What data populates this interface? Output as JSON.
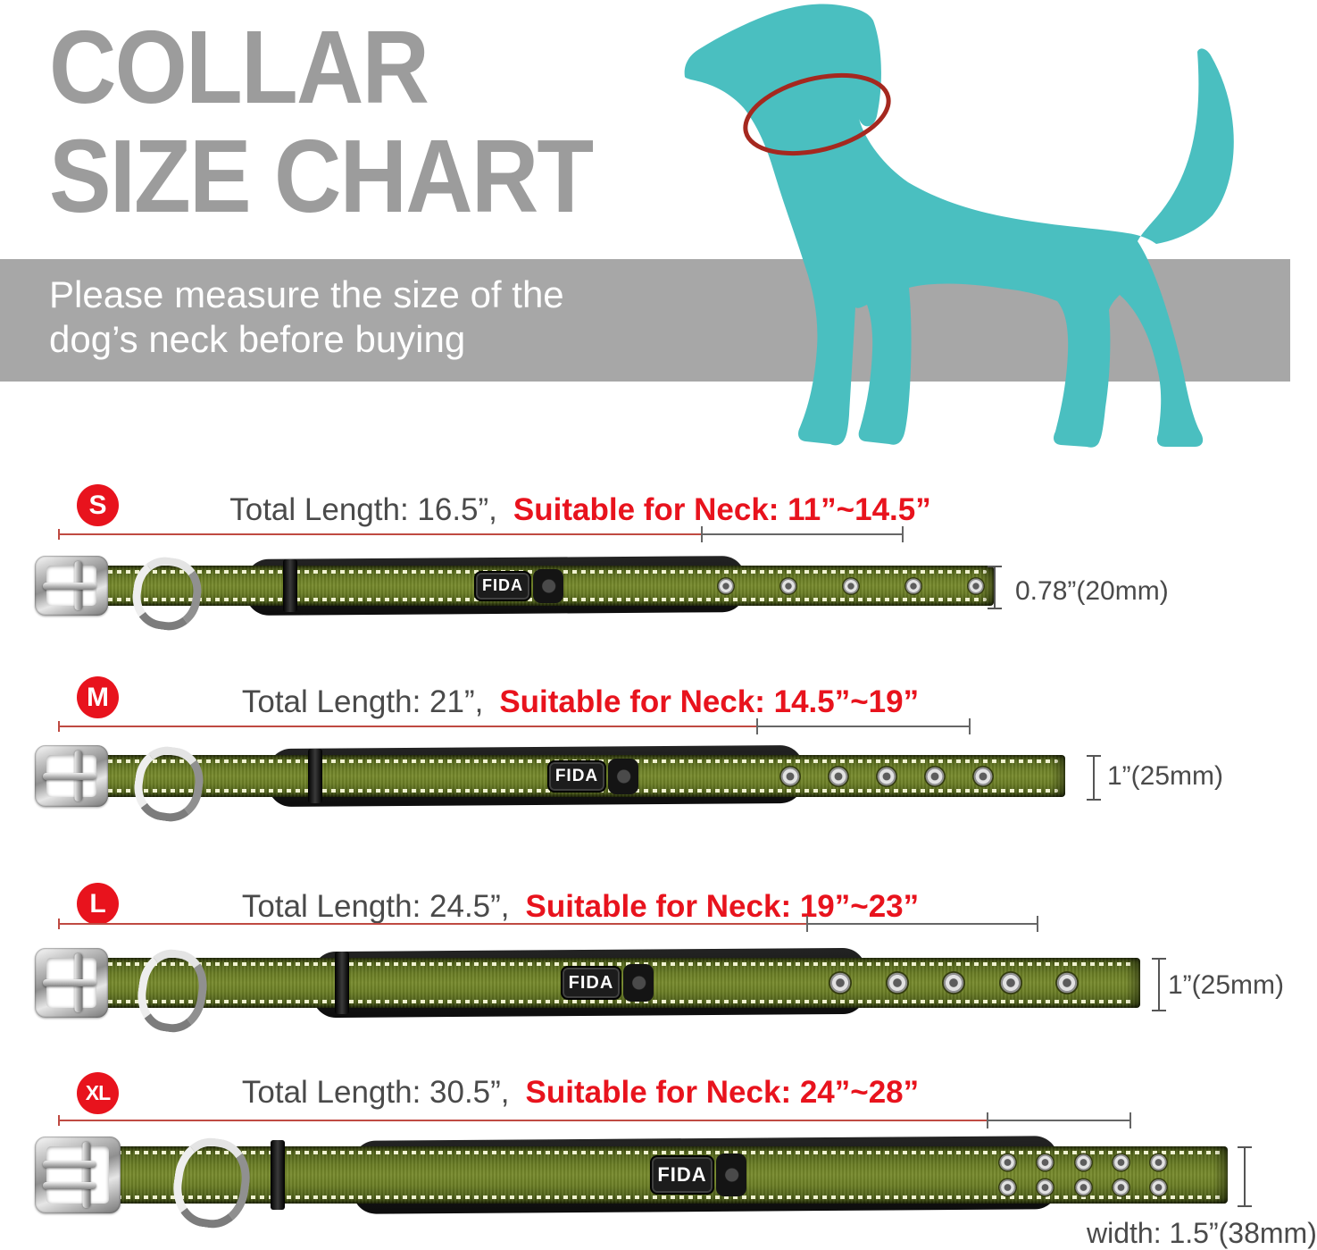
{
  "title": {
    "line1": "COLLAR",
    "line2": "SIZE CHART"
  },
  "banner": {
    "line1": "Please measure the size of the",
    "line2": "dog’s neck before buying"
  },
  "dog": {
    "description": "teal dog silhouette with red measuring ring around neck"
  },
  "brand": "FIDA",
  "rows": [
    {
      "size": "S",
      "total_length": "Total Length: 16.5”,",
      "neck_range": "Suitable for Neck: 11”~14.5”",
      "width_label": "0.78”(20mm)",
      "eyelets_per_row": 5,
      "eyelet_rows": 1
    },
    {
      "size": "M",
      "total_length": "Total Length: 21”,",
      "neck_range": "Suitable for Neck: 14.5”~19”",
      "width_label": "1”(25mm)",
      "eyelets_per_row": 5,
      "eyelet_rows": 1
    },
    {
      "size": "L",
      "total_length": "Total Length: 24.5”,",
      "neck_range": "Suitable for Neck: 19”~23”",
      "width_label": "1”(25mm)",
      "eyelets_per_row": 5,
      "eyelet_rows": 1
    },
    {
      "size": "XL",
      "total_length": "Total Length: 30.5”,",
      "neck_range": "Suitable for Neck: 24”~28”",
      "width_label": "width: 1.5”(38mm)",
      "eyelets_per_row": 5,
      "eyelet_rows": 2
    }
  ],
  "colors": {
    "title_gray": "#9c9c9c",
    "banner_gray": "#a7a7a7",
    "accent_red": "#e8131d",
    "measure_line_red": "#bf4a42",
    "measure_line_gray": "#666666",
    "text_gray": "#4a4a4a",
    "dog_teal": "#4abfc0",
    "neck_ring_red": "#a5281f",
    "collar_green": "#6b7e25"
  }
}
